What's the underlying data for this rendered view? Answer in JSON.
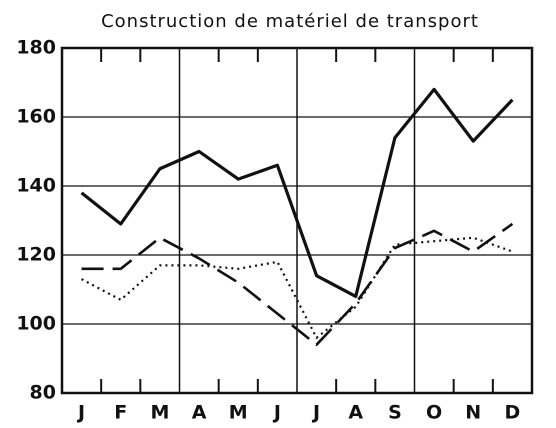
{
  "chart_data": {
    "type": "line",
    "title": "Construction de matériel de transport",
    "categories": [
      "J",
      "F",
      "M",
      "A",
      "M",
      "J",
      "J",
      "A",
      "S",
      "O",
      "N",
      "D"
    ],
    "series": [
      {
        "color": "#111111",
        "dash": "solid",
        "values": [
          138,
          129,
          145,
          150,
          142,
          146,
          114,
          108,
          154,
          168,
          153,
          165
        ]
      },
      {
        "color": "#111111",
        "dash": "dashed",
        "values": [
          116,
          116,
          125,
          119,
          112,
          103,
          94,
          106,
          122,
          127,
          121,
          129
        ]
      },
      {
        "color": "#111111",
        "dash": "dotted",
        "values": [
          113,
          107,
          117,
          117,
          116,
          118,
          96,
          105,
          123,
          124,
          125,
          121
        ]
      }
    ],
    "ylim": [
      80,
      180
    ],
    "yticks": [
      80,
      100,
      120,
      140,
      160,
      180
    ],
    "grid": true
  }
}
